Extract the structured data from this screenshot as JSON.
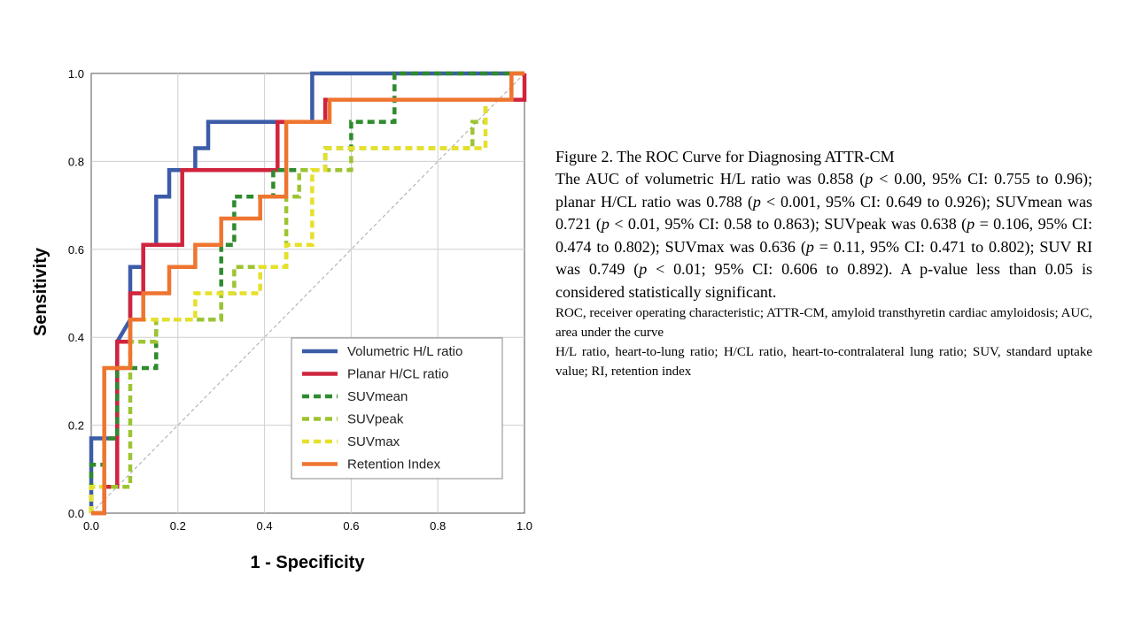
{
  "chart_data": {
    "type": "line",
    "xlabel": "1 - Specificity",
    "ylabel": "Sensitivity",
    "xlim": [
      0,
      1
    ],
    "ylim": [
      0,
      1
    ],
    "xticks": [
      "0.0",
      "0.2",
      "0.4",
      "0.6",
      "0.8",
      "1.0"
    ],
    "yticks": [
      "0.0",
      "0.2",
      "0.4",
      "0.6",
      "0.8",
      "1.0"
    ],
    "grid": true,
    "legend_position": "bottom-right",
    "reference_line": "diagonal",
    "series": [
      {
        "name": "Volumetric H/L ratio",
        "color": "#3c5ca8",
        "style": "solid",
        "x": [
          0,
          0,
          0.06,
          0.06,
          0.09,
          0.09,
          0.12,
          0.12,
          0.15,
          0.15,
          0.18,
          0.18,
          0.24,
          0.24,
          0.27,
          0.27,
          0.42,
          0.42,
          0.51,
          0.51,
          1,
          1
        ],
        "y": [
          0,
          0.17,
          0.17,
          0.39,
          0.44,
          0.56,
          0.56,
          0.61,
          0.61,
          0.72,
          0.72,
          0.78,
          0.78,
          0.83,
          0.83,
          0.89,
          0.89,
          0.89,
          0.89,
          1,
          1,
          1
        ]
      },
      {
        "name": "Planar H/CL ratio",
        "color": "#d0243e",
        "style": "solid",
        "x": [
          0,
          0.03,
          0.03,
          0.06,
          0.06,
          0.09,
          0.09,
          0.12,
          0.12,
          0.21,
          0.21,
          0.43,
          0.43,
          0.54,
          0.54,
          1,
          1
        ],
        "y": [
          0,
          0,
          0.06,
          0.06,
          0.39,
          0.39,
          0.5,
          0.5,
          0.61,
          0.61,
          0.78,
          0.78,
          0.89,
          0.89,
          0.94,
          0.94,
          1
        ]
      },
      {
        "name": "SUVmean",
        "color": "#2e8b2e",
        "style": "dashed",
        "x": [
          0,
          0,
          0.03,
          0.03,
          0.06,
          0.06,
          0.12,
          0.12,
          0.15,
          0.15,
          0.3,
          0.3,
          0.33,
          0.33,
          0.42,
          0.42,
          0.54,
          0.54,
          0.6,
          0.6,
          0.7,
          0.7,
          1
        ],
        "y": [
          0,
          0.11,
          0.11,
          0.17,
          0.17,
          0.33,
          0.33,
          0.33,
          0.33,
          0.44,
          0.44,
          0.61,
          0.61,
          0.72,
          0.72,
          0.78,
          0.78,
          0.83,
          0.83,
          0.89,
          0.89,
          1,
          1
        ]
      },
      {
        "name": "SUVpeak",
        "color": "#9dc431",
        "style": "dashed",
        "x": [
          0,
          0,
          0.03,
          0.03,
          0.09,
          0.09,
          0.15,
          0.15,
          0.3,
          0.3,
          0.33,
          0.33,
          0.45,
          0.45,
          0.48,
          0.48,
          0.6,
          0.6,
          0.88,
          0.88,
          0.91,
          0.91,
          0.97,
          0.97,
          1
        ],
        "y": [
          0,
          0.06,
          0.06,
          0.06,
          0.06,
          0.39,
          0.39,
          0.44,
          0.44,
          0.5,
          0.5,
          0.56,
          0.56,
          0.72,
          0.72,
          0.78,
          0.78,
          0.83,
          0.83,
          0.89,
          0.89,
          0.94,
          0.94,
          1,
          1
        ]
      },
      {
        "name": "SUVmax",
        "color": "#e6e02a",
        "style": "dashed",
        "x": [
          0,
          0,
          0.03,
          0.03,
          0.09,
          0.09,
          0.24,
          0.24,
          0.39,
          0.39,
          0.45,
          0.45,
          0.51,
          0.51,
          0.54,
          0.54,
          0.57,
          0.57,
          0.91,
          0.91,
          0.97,
          0.97,
          1
        ],
        "y": [
          0,
          0.06,
          0.06,
          0.33,
          0.33,
          0.44,
          0.44,
          0.5,
          0.5,
          0.56,
          0.56,
          0.61,
          0.61,
          0.78,
          0.78,
          0.83,
          0.83,
          0.83,
          0.83,
          0.94,
          0.94,
          1,
          1
        ]
      },
      {
        "name": "Retention Index",
        "color": "#ee7530",
        "style": "solid",
        "x": [
          0,
          0.03,
          0.03,
          0.09,
          0.09,
          0.12,
          0.12,
          0.18,
          0.18,
          0.24,
          0.24,
          0.3,
          0.3,
          0.39,
          0.39,
          0.45,
          0.45,
          0.55,
          0.55,
          0.97,
          0.97,
          1
        ],
        "y": [
          0,
          0,
          0.33,
          0.33,
          0.44,
          0.44,
          0.5,
          0.5,
          0.56,
          0.56,
          0.61,
          0.61,
          0.67,
          0.67,
          0.72,
          0.72,
          0.89,
          0.89,
          0.94,
          0.94,
          1,
          1
        ]
      }
    ]
  },
  "caption": {
    "title": "Figure 2. The ROC Curve for Diagnosing ATTR-CM",
    "body_1": "The AUC of volumetric H/L ratio was 0.858 (",
    "p1": "p",
    "body_2": " < 0.00, 95% CI: 0.755 to 0.96); planar H/CL ratio was 0.788 (",
    "p2": "p",
    "body_3": " < 0.001, 95% CI: 0.649 to 0.926); SUVmean was 0.721 (",
    "p3": "p",
    "body_4": " < 0.01, 95% CI: 0.58 to 0.863); SUVpeak was 0.638 (",
    "p4": "p",
    "body_5": " = 0.106, 95% CI: 0.474 to 0.802); SUVmax was 0.636 (",
    "p5": "p",
    "body_6": " = 0.11, 95% CI: 0.471 to 0.802); SUV RI was 0.749 (",
    "p6": "p",
    "body_7": " < 0.01; 95% CI: 0.606 to 0.892). A p-value less than 0.05 is considered statistically significant.",
    "note_1": "ROC, receiver operating characteristic; ATTR-CM, amyloid transthyretin cardiac amyloidosis; AUC, area under the curve",
    "note_2": "H/L ratio, heart-to-lung ratio; H/CL ratio, heart-to-contralateral lung ratio; SUV, standard uptake value; RI, retention index"
  }
}
